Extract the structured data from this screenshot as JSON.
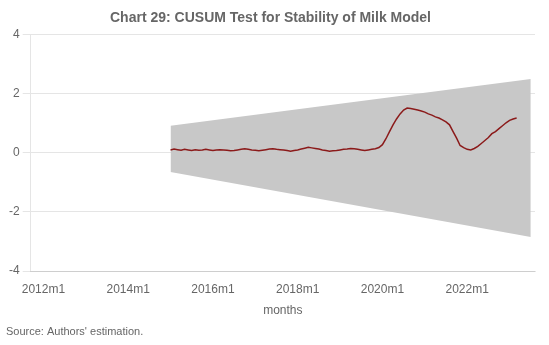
{
  "chart_data": {
    "type": "line",
    "title": "Chart 29: CUSUM Test for Stability of Milk Model",
    "xlabel": "months",
    "annotations": [
      "Source: Authors' estimation."
    ],
    "xlim": [
      2011.7,
      2023.6
    ],
    "xticks": [
      {
        "value": 2012.0,
        "label": "2012m1"
      },
      {
        "value": 2014.0,
        "label": "2014m1"
      },
      {
        "value": 2016.0,
        "label": "2016m1"
      },
      {
        "value": 2018.0,
        "label": "2018m1"
      },
      {
        "value": 2020.0,
        "label": "2020m1"
      },
      {
        "value": 2022.0,
        "label": "2022m1"
      }
    ],
    "ylim": [
      -4,
      4
    ],
    "yticks": [
      -4,
      -2,
      0,
      2,
      4
    ],
    "grid": "y",
    "band": {
      "x": [
        2015.0,
        2023.5
      ],
      "upper": [
        0.92,
        2.5
      ],
      "lower": [
        -0.65,
        -2.85
      ],
      "color": "#c8c8c8"
    },
    "color": "#8b1a1a",
    "x": [
      2015.0,
      2015.083,
      2015.167,
      2015.25,
      2015.333,
      2015.417,
      2015.5,
      2015.583,
      2015.667,
      2015.75,
      2015.833,
      2015.917,
      2016.0,
      2016.083,
      2016.167,
      2016.25,
      2016.333,
      2016.417,
      2016.5,
      2016.583,
      2016.667,
      2016.75,
      2016.833,
      2016.917,
      2017.0,
      2017.083,
      2017.167,
      2017.25,
      2017.333,
      2017.417,
      2017.5,
      2017.583,
      2017.667,
      2017.75,
      2017.833,
      2017.917,
      2018.0,
      2018.083,
      2018.167,
      2018.25,
      2018.333,
      2018.417,
      2018.5,
      2018.583,
      2018.667,
      2018.75,
      2018.833,
      2018.917,
      2019.0,
      2019.083,
      2019.167,
      2019.25,
      2019.333,
      2019.417,
      2019.5,
      2019.583,
      2019.667,
      2019.75,
      2019.833,
      2019.917,
      2020.0,
      2020.083,
      2020.167,
      2020.25,
      2020.333,
      2020.417,
      2020.5,
      2020.583,
      2020.667,
      2020.75,
      2020.833,
      2020.917,
      2021.0,
      2021.083,
      2021.167,
      2021.25,
      2021.333,
      2021.417,
      2021.5,
      2021.583,
      2021.667,
      2021.75,
      2021.833,
      2021.917,
      2022.0,
      2022.083,
      2022.167,
      2022.25,
      2022.333,
      2022.417,
      2022.5,
      2022.583,
      2022.667,
      2022.75,
      2022.833,
      2022.917,
      2023.0,
      2023.083,
      2023.167
    ],
    "values": [
      0.1,
      0.13,
      0.11,
      0.09,
      0.12,
      0.1,
      0.08,
      0.11,
      0.09,
      0.1,
      0.12,
      0.1,
      0.08,
      0.1,
      0.11,
      0.1,
      0.09,
      0.07,
      0.08,
      0.1,
      0.12,
      0.14,
      0.12,
      0.1,
      0.09,
      0.07,
      0.09,
      0.11,
      0.13,
      0.14,
      0.12,
      0.11,
      0.1,
      0.08,
      0.06,
      0.08,
      0.1,
      0.13,
      0.16,
      0.19,
      0.17,
      0.15,
      0.13,
      0.1,
      0.08,
      0.06,
      0.07,
      0.08,
      0.1,
      0.12,
      0.13,
      0.15,
      0.14,
      0.12,
      0.1,
      0.08,
      0.1,
      0.12,
      0.14,
      0.18,
      0.28,
      0.48,
      0.72,
      0.95,
      1.15,
      1.32,
      1.45,
      1.52,
      1.5,
      1.48,
      1.45,
      1.42,
      1.38,
      1.32,
      1.28,
      1.22,
      1.18,
      1.12,
      1.05,
      0.95,
      0.72,
      0.5,
      0.25,
      0.18,
      0.12,
      0.1,
      0.15,
      0.22,
      0.32,
      0.42,
      0.52,
      0.65,
      0.72,
      0.82,
      0.92,
      1.02,
      1.1,
      1.15,
      1.18
    ]
  }
}
